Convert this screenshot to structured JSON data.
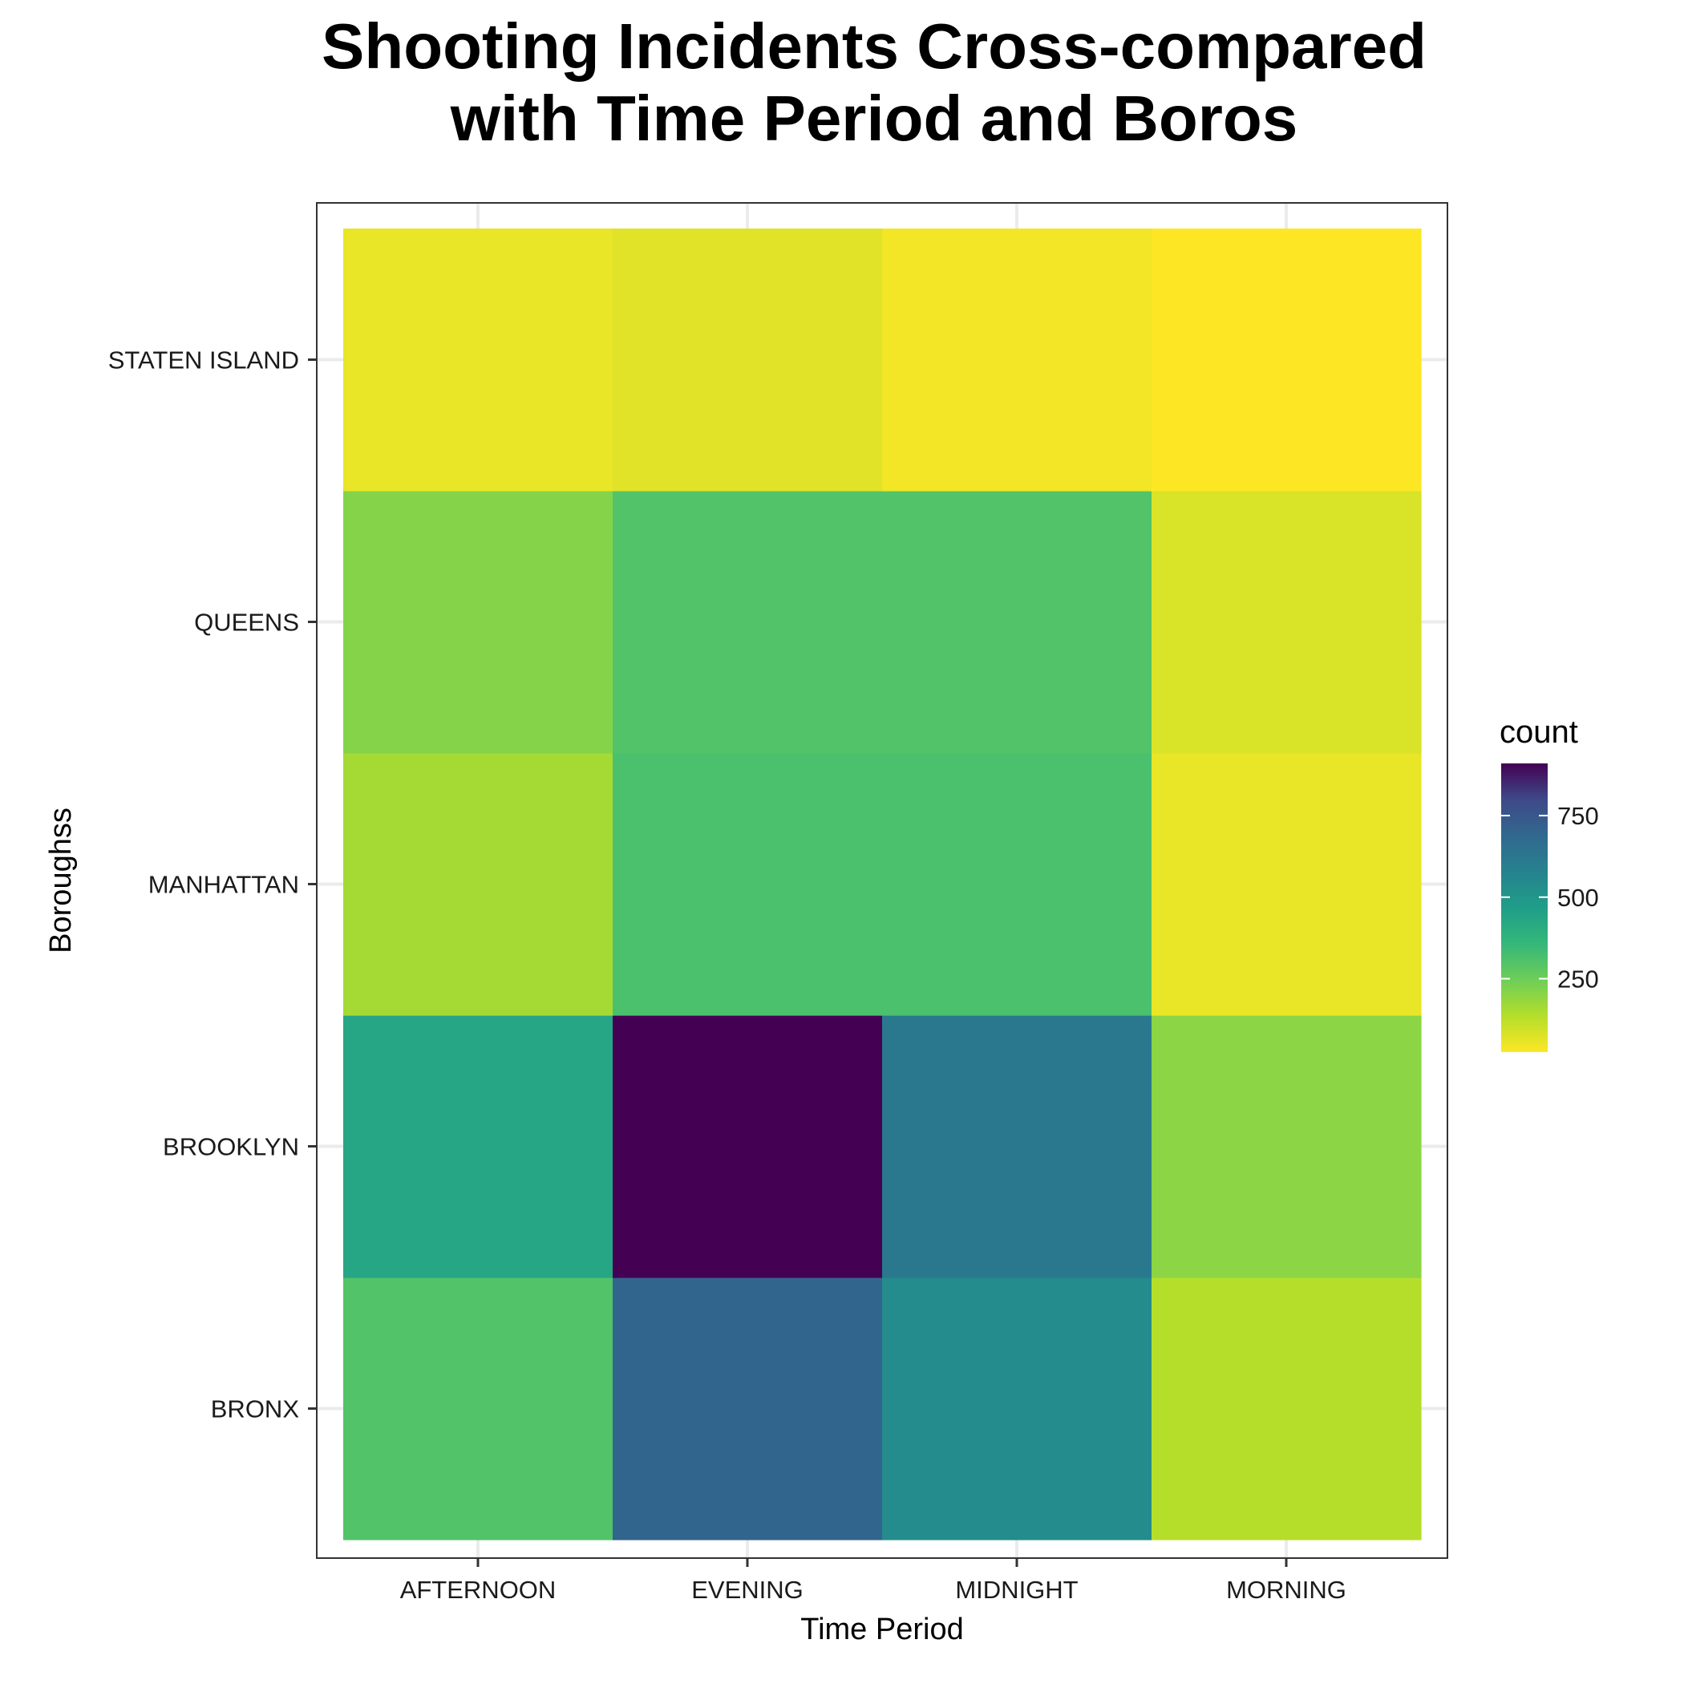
{
  "chart_data": {
    "type": "heatmap",
    "title_lines": [
      "Shooting Incidents Cross-compared",
      "with Time Period and Boros"
    ],
    "xlabel": "Time Period",
    "ylabel": "Boroughss",
    "x_categories": [
      "AFTERNOON",
      "EVENING",
      "MIDNIGHT",
      "MORNING"
    ],
    "y_categories": [
      "BRONX",
      "BROOKLYN",
      "MANHATTAN",
      "QUEENS",
      "STATEN ISLAND"
    ],
    "values": [
      [
        300,
        700,
        540,
        135
      ],
      [
        430,
        910,
        620,
        200
      ],
      [
        160,
        315,
        315,
        55
      ],
      [
        210,
        300,
        300,
        80
      ],
      [
        55,
        70,
        40,
        25
      ]
    ],
    "legend": {
      "title": "count",
      "range": [
        25,
        910
      ],
      "ticks": [
        250,
        500,
        750
      ],
      "tick_labels": [
        "250",
        "500",
        "750"
      ]
    },
    "colors": {
      "high": "#440154",
      "low": "#fde725",
      "grid": "#ebebeb",
      "panel_border": "#333333"
    }
  }
}
